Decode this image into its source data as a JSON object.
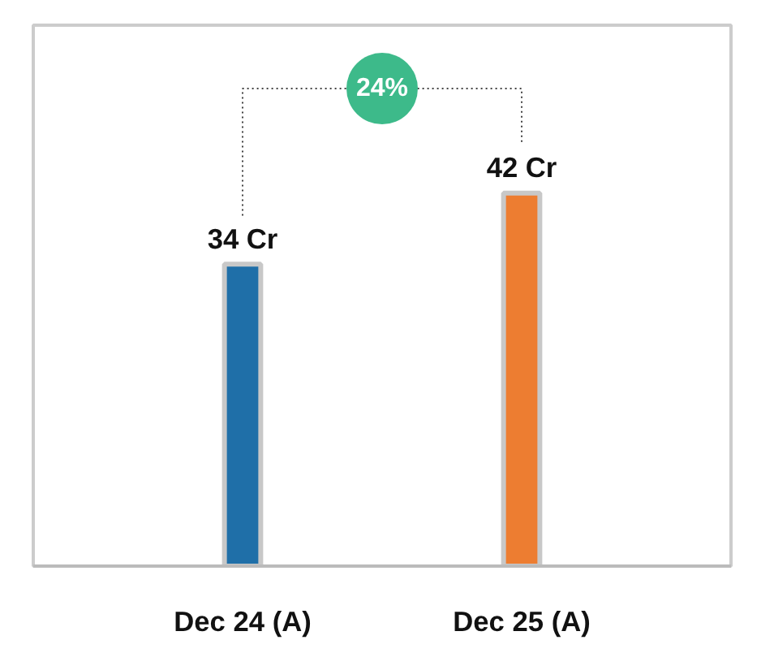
{
  "chart_data": {
    "type": "bar",
    "categories": [
      "Dec 24 (A)",
      "Dec 25 (A)"
    ],
    "values": [
      34,
      42
    ],
    "colors": [
      "#1f6fa8",
      "#ed7d31"
    ],
    "value_labels": [
      "34 Cr",
      "42 Cr"
    ],
    "annotations": [
      "24%"
    ]
  }
}
